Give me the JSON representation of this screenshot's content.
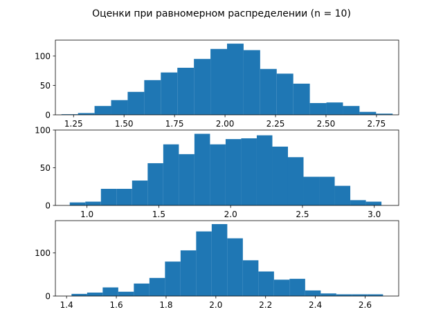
{
  "title": "Оценки при равномерном распределении (n = 10)",
  "bar_color": "#1f77b4",
  "chart_data": [
    {
      "type": "bar",
      "subtype": "histogram",
      "xlim": [
        1.16,
        2.86
      ],
      "ylim": [
        0,
        127
      ],
      "xticks": [
        1.25,
        1.5,
        1.75,
        2.0,
        2.25,
        2.5,
        2.75
      ],
      "xtick_labels": [
        "1.25",
        "1.50",
        "1.75",
        "2.00",
        "2.25",
        "2.50",
        "2.75"
      ],
      "yticks": [
        0,
        50,
        100
      ],
      "ytick_labels": [
        "0",
        "50",
        "100"
      ],
      "bin_edges": [
        1.19,
        1.272,
        1.354,
        1.436,
        1.518,
        1.6,
        1.682,
        1.764,
        1.846,
        1.928,
        2.01,
        2.092,
        2.174,
        2.256,
        2.338,
        2.42,
        2.502,
        2.584,
        2.666,
        2.748,
        2.83
      ],
      "counts": [
        1,
        3,
        15,
        25,
        39,
        59,
        72,
        80,
        95,
        112,
        121,
        110,
        78,
        70,
        53,
        20,
        21,
        15,
        5,
        2
      ]
    },
    {
      "type": "bar",
      "subtype": "histogram",
      "xlim": [
        0.78,
        3.17
      ],
      "ylim": [
        0,
        100
      ],
      "xticks": [
        1.0,
        1.5,
        2.0,
        2.5,
        3.0
      ],
      "xtick_labels": [
        "1.0",
        "1.5",
        "2.0",
        "2.5",
        "3.0"
      ],
      "yticks": [
        0,
        50,
        100
      ],
      "ytick_labels": [
        "0",
        "50",
        "100"
      ],
      "bin_edges": [
        0.88,
        0.9885,
        1.097,
        1.2055,
        1.314,
        1.4225,
        1.531,
        1.6395,
        1.748,
        1.8565,
        1.965,
        2.0735,
        2.182,
        2.2905,
        2.399,
        2.5075,
        2.616,
        2.7245,
        2.833,
        2.9415,
        3.05
      ],
      "counts": [
        4,
        5,
        22,
        22,
        33,
        56,
        81,
        68,
        95,
        81,
        88,
        89,
        93,
        78,
        64,
        38,
        38,
        26,
        7,
        5
      ]
    },
    {
      "type": "bar",
      "subtype": "histogram",
      "xlim": [
        1.355,
        2.735
      ],
      "ylim": [
        0,
        175
      ],
      "xticks": [
        1.4,
        1.6,
        1.8,
        2.0,
        2.2,
        2.4,
        2.6
      ],
      "xtick_labels": [
        "1.4",
        "1.6",
        "1.8",
        "2.0",
        "2.2",
        "2.4",
        "2.6"
      ],
      "yticks": [
        0,
        100
      ],
      "ytick_labels": [
        "0",
        "100"
      ],
      "bin_edges": [
        1.42,
        1.4826,
        1.5452,
        1.6078,
        1.6704,
        1.733,
        1.7956,
        1.8582,
        1.9208,
        1.9834,
        2.046,
        2.1086,
        2.1712,
        2.2338,
        2.2964,
        2.359,
        2.4216,
        2.4842,
        2.5468,
        2.6094,
        2.672
      ],
      "counts": [
        5,
        8,
        20,
        10,
        29,
        42,
        80,
        106,
        150,
        167,
        134,
        83,
        57,
        38,
        40,
        13,
        6,
        4,
        4,
        4
      ]
    }
  ]
}
